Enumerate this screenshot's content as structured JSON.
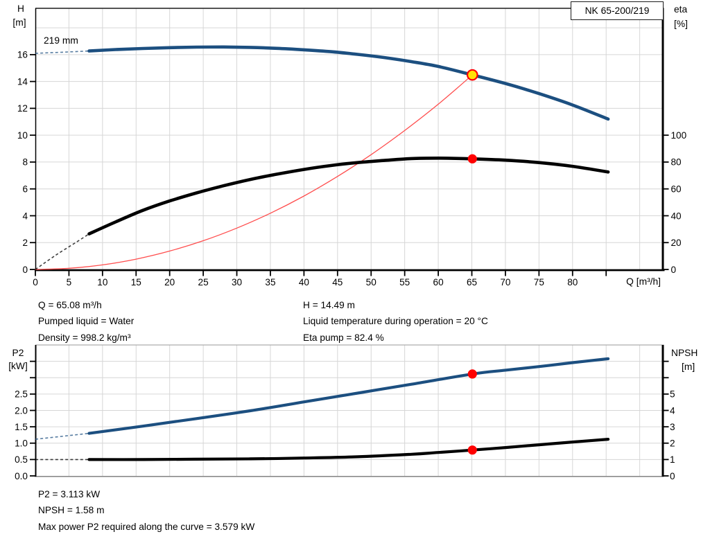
{
  "header": {
    "model": "NK 65-200/219"
  },
  "colors": {
    "curve_blue": "#1c4f80",
    "curve_black": "#000000",
    "system_red": "#ff4d4d",
    "dot_red": "#ff0000",
    "dot_yellow": "#ffe106",
    "grid": "#d6d6d6",
    "axis": "#000000",
    "frame_gray": "#8a8a8a",
    "text": "#000000"
  },
  "info_top": {
    "left": [
      "Q = 65.08 m³/h",
      "Pumped liquid = Water",
      "Density = 998.2 kg/m³"
    ],
    "right": [
      "H = 14.49 m",
      "Liquid temperature during operation = 20 °C",
      "Eta pump = 82.4 %"
    ]
  },
  "info_bottom": [
    "P2 = 3.113 kW",
    "NPSH = 1.58 m",
    "Max power P2 required along the curve = 3.579 kW"
  ],
  "chart_data": [
    {
      "type": "line",
      "name": "qh-eta-chart",
      "xlabel": "Q [m³/h]",
      "ylabel_left": [
        "H",
        "[m]"
      ],
      "ylabel_right": [
        "eta",
        "[%]"
      ],
      "xlim": [
        0,
        93.6
      ],
      "ylim_left": [
        0,
        19.45
      ],
      "ylim_right": [
        0,
        194.5
      ],
      "annotation": {
        "text": "219 mm"
      },
      "x_ticks": {
        "values": [
          0,
          5,
          10,
          15,
          20,
          25,
          30,
          35,
          40,
          45,
          50,
          55,
          60,
          65,
          70,
          75,
          80,
          85
        ],
        "labels": [
          "0",
          "5",
          "10",
          "15",
          "20",
          "25",
          "30",
          "35",
          "40",
          "45",
          "50",
          "55",
          "60",
          "65",
          "70",
          "75",
          "80",
          ""
        ]
      },
      "left_ticks": {
        "values": [
          0,
          2,
          4,
          6,
          8,
          10,
          12,
          14,
          16
        ],
        "labels": [
          "0",
          "2",
          "4",
          "6",
          "8",
          "10",
          "12",
          "14",
          "16"
        ]
      },
      "right_ticks": {
        "values": [
          0,
          20,
          40,
          60,
          80,
          100
        ],
        "labels": [
          "0",
          "20",
          "40",
          "60",
          "80",
          "100"
        ]
      },
      "series": [
        {
          "name": "system-curve",
          "axis": "left",
          "color_key": "system_red",
          "width": 1.3,
          "points": [
            [
              0,
              0
            ],
            [
              5,
              0.09
            ],
            [
              10,
              0.34
            ],
            [
              15,
              0.77
            ],
            [
              20,
              1.37
            ],
            [
              25,
              2.14
            ],
            [
              30,
              3.08
            ],
            [
              35,
              4.19
            ],
            [
              40,
              5.47
            ],
            [
              45,
              6.93
            ],
            [
              50,
              8.55
            ],
            [
              55,
              10.35
            ],
            [
              60,
              12.31
            ],
            [
              65.08,
              14.49
            ]
          ]
        },
        {
          "name": "head-curve-219mm",
          "axis": "left",
          "color_key": "curve_blue",
          "width": 4.6,
          "dash_points": [
            [
              0,
              16.1
            ],
            [
              4,
              16.18
            ],
            [
              8,
              16.27
            ]
          ],
          "points": [
            [
              8,
              16.27
            ],
            [
              12,
              16.38
            ],
            [
              16,
              16.46
            ],
            [
              20,
              16.52
            ],
            [
              24,
              16.56
            ],
            [
              28,
              16.57
            ],
            [
              32,
              16.54
            ],
            [
              36,
              16.47
            ],
            [
              40,
              16.36
            ],
            [
              44,
              16.22
            ],
            [
              48,
              16.02
            ],
            [
              52,
              15.78
            ],
            [
              56,
              15.48
            ],
            [
              60,
              15.12
            ],
            [
              65.08,
              14.49
            ],
            [
              70,
              13.85
            ],
            [
              75,
              13.1
            ],
            [
              80,
              12.25
            ],
            [
              85.3,
              11.2
            ]
          ]
        },
        {
          "name": "efficiency-curve",
          "axis": "right",
          "color_key": "curve_black",
          "width": 4.6,
          "dash_points": [
            [
              0,
              0
            ],
            [
              3,
              10.5
            ],
            [
              6,
              20
            ],
            [
              8,
              26.5
            ]
          ],
          "points": [
            [
              8,
              26.5
            ],
            [
              12,
              35.5
            ],
            [
              16,
              44
            ],
            [
              20,
              51
            ],
            [
              24,
              57
            ],
            [
              28,
              62.3
            ],
            [
              32,
              67
            ],
            [
              36,
              71
            ],
            [
              40,
              74.5
            ],
            [
              44,
              77.4
            ],
            [
              48,
              79.6
            ],
            [
              52,
              81.2
            ],
            [
              56,
              82.6
            ],
            [
              60,
              82.9
            ],
            [
              65.08,
              82.4
            ],
            [
              70,
              81.4
            ],
            [
              75,
              79.6
            ],
            [
              80,
              76.8
            ],
            [
              85.3,
              72.6
            ]
          ]
        }
      ],
      "duty_points": [
        {
          "name": "duty-point-head",
          "q": 65.08,
          "value": 14.49,
          "axis": "left",
          "r": 7.2,
          "fill_key": "dot_yellow",
          "stroke_key": "dot_red",
          "stroke_w": 2.2
        },
        {
          "name": "duty-point-eta",
          "q": 65.08,
          "value": 82.4,
          "axis": "right",
          "r": 6.6,
          "fill_key": "dot_red",
          "stroke_key": "dot_red",
          "stroke_w": 0
        }
      ]
    },
    {
      "type": "line",
      "name": "p2-npsh-chart",
      "xlabel": "",
      "ylabel_left": [
        "P2",
        "[kW]"
      ],
      "ylabel_right": [
        "NPSH",
        "[m]"
      ],
      "xlim": [
        0,
        93.6
      ],
      "ylim_left": [
        0,
        4.0
      ],
      "ylim_right": [
        0,
        8.0
      ],
      "x_ticks": {
        "values": [],
        "labels": []
      },
      "left_ticks": {
        "values": [
          0,
          0.5,
          1,
          1.5,
          2,
          2.5,
          3,
          3.5
        ],
        "labels": [
          "0.0",
          "0.5",
          "1.0",
          "1.5",
          "2.0",
          "2.5",
          "",
          ""
        ]
      },
      "right_ticks": {
        "values": [
          0,
          1,
          2,
          3,
          4,
          5,
          6,
          7
        ],
        "labels": [
          "0",
          "1",
          "2",
          "3",
          "4",
          "5",
          "",
          ""
        ]
      },
      "series": [
        {
          "name": "p2-power-curve",
          "axis": "left",
          "color_key": "curve_blue",
          "width": 4.2,
          "dash_points": [
            [
              0,
              1.12
            ],
            [
              8,
              1.3
            ]
          ],
          "points": [
            [
              8,
              1.3
            ],
            [
              16,
              1.52
            ],
            [
              24,
              1.75
            ],
            [
              32,
              1.99
            ],
            [
              40,
              2.26
            ],
            [
              48,
              2.53
            ],
            [
              56,
              2.8
            ],
            [
              65.08,
              3.113
            ],
            [
              70,
              3.23
            ],
            [
              75,
              3.34
            ],
            [
              80,
              3.46
            ],
            [
              85.3,
              3.579
            ]
          ]
        },
        {
          "name": "npsh-curve",
          "axis": "right",
          "color_key": "curve_black",
          "width": 4.2,
          "dash_points": [
            [
              0,
              1.0
            ],
            [
              8,
              1.0
            ]
          ],
          "points": [
            [
              8,
              1.0
            ],
            [
              16,
              1.0
            ],
            [
              24,
              1.02
            ],
            [
              32,
              1.04
            ],
            [
              40,
              1.09
            ],
            [
              48,
              1.17
            ],
            [
              56,
              1.32
            ],
            [
              60,
              1.43
            ],
            [
              65.08,
              1.58
            ],
            [
              70,
              1.73
            ],
            [
              75,
              1.9
            ],
            [
              80,
              2.07
            ],
            [
              85.3,
              2.24
            ]
          ]
        }
      ],
      "duty_points": [
        {
          "name": "duty-point-p2",
          "q": 65.08,
          "value": 3.113,
          "axis": "left",
          "r": 6.6,
          "fill_key": "dot_red",
          "stroke_key": "dot_red",
          "stroke_w": 0
        },
        {
          "name": "duty-point-npsh",
          "q": 65.08,
          "value": 1.58,
          "axis": "right",
          "r": 6.6,
          "fill_key": "dot_red",
          "stroke_key": "dot_red",
          "stroke_w": 0
        }
      ]
    }
  ]
}
